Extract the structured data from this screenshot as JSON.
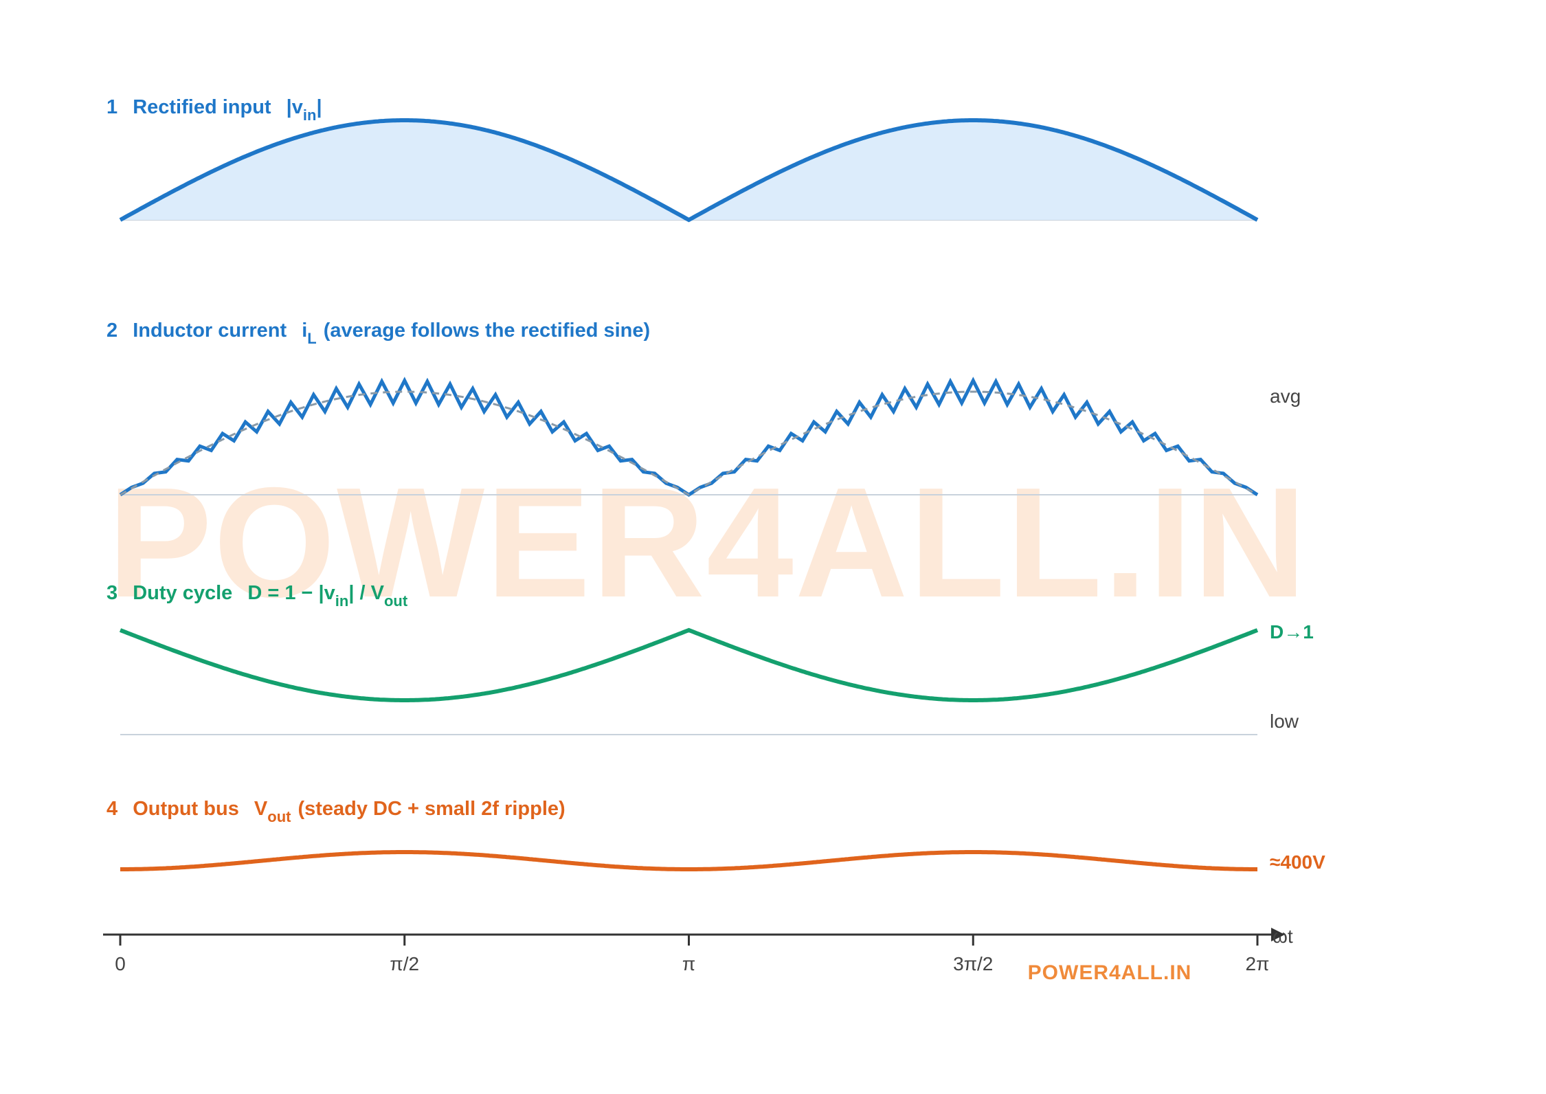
{
  "colors": {
    "blue": "#1f77c8",
    "blue_fill": "#dcecfb",
    "green": "#14a06e",
    "orange": "#e0641c",
    "baseline": "#c8d2dc",
    "avg_dash": "#8a9aa8",
    "axis": "#333333",
    "watermark": "#fde9d9",
    "watermark_small": "#f08a3a"
  },
  "watermark": {
    "text": "POWER4ALL.IN"
  },
  "chart_data": [
    {
      "type": "area",
      "panel": 1,
      "title": {
        "number": "1",
        "text": "Rectified input",
        "expr_pre": "|v",
        "expr_sub": "in",
        "expr_post": "|"
      },
      "x_range": [
        0,
        6.2832
      ],
      "series": [
        {
          "x": [
            0,
            0.7854,
            1.5708,
            2.3562,
            3.1416,
            3.927,
            4.7124,
            5.4978,
            6.2832
          ],
          "y": [
            0,
            0.707,
            1,
            0.707,
            0,
            0.707,
            1,
            0.707,
            0
          ]
        }
      ]
    },
    {
      "type": "line",
      "panel": 2,
      "title": {
        "number": "2",
        "text": "Inductor current",
        "var": "i",
        "var_sub": "L",
        "note": "(average follows the rectified sine)"
      },
      "side_label": "avg",
      "switching_periods_per_half_cycle": 25,
      "ripple_amplitude": 0.12,
      "series": [
        {
          "style": "triangular ripple",
          "x": [
            0,
            1.5708,
            3.1416,
            4.7124,
            6.2832
          ],
          "y": [
            0,
            1,
            0,
            1,
            0
          ]
        },
        {
          "style": "dashed average",
          "x": [
            0,
            0.7854,
            1.5708,
            2.3562,
            3.1416,
            3.927,
            4.7124,
            5.4978,
            6.2832
          ],
          "y": [
            0,
            0.707,
            1,
            0.707,
            0,
            0.707,
            1,
            0.707,
            0
          ]
        }
      ]
    },
    {
      "type": "line",
      "panel": 3,
      "title": {
        "number": "3",
        "text": "Duty cycle",
        "expr_pre": "D = 1 − |v",
        "expr_sub": "in",
        "expr_mid": "| / V",
        "expr_sub2": "out"
      },
      "side_labels": {
        "top": "D→1",
        "bottom": "low"
      },
      "series": [
        {
          "x": [
            0,
            1.5708,
            3.1416,
            4.7124,
            6.2832
          ],
          "y": [
            1,
            0.45,
            1,
            0.45,
            1
          ]
        }
      ]
    },
    {
      "type": "line",
      "panel": 4,
      "title": {
        "number": "4",
        "text": "Output bus",
        "var": "V",
        "var_sub": "out",
        "note": "(steady DC + small 2f ripple)"
      },
      "side_label": "≈400V",
      "series": [
        {
          "x": [
            0,
            1.5708,
            3.1416,
            4.7124,
            6.2832
          ],
          "y": [
            0,
            1,
            0,
            1,
            0
          ]
        }
      ]
    }
  ],
  "x_axis": {
    "label": "ωt",
    "ticks": [
      {
        "value": 0,
        "label": "0"
      },
      {
        "value": 1.5708,
        "label": "π/2"
      },
      {
        "value": 3.1416,
        "label": "π"
      },
      {
        "value": 4.7124,
        "label": "3π/2"
      },
      {
        "value": 6.2832,
        "label": "2π"
      }
    ]
  }
}
